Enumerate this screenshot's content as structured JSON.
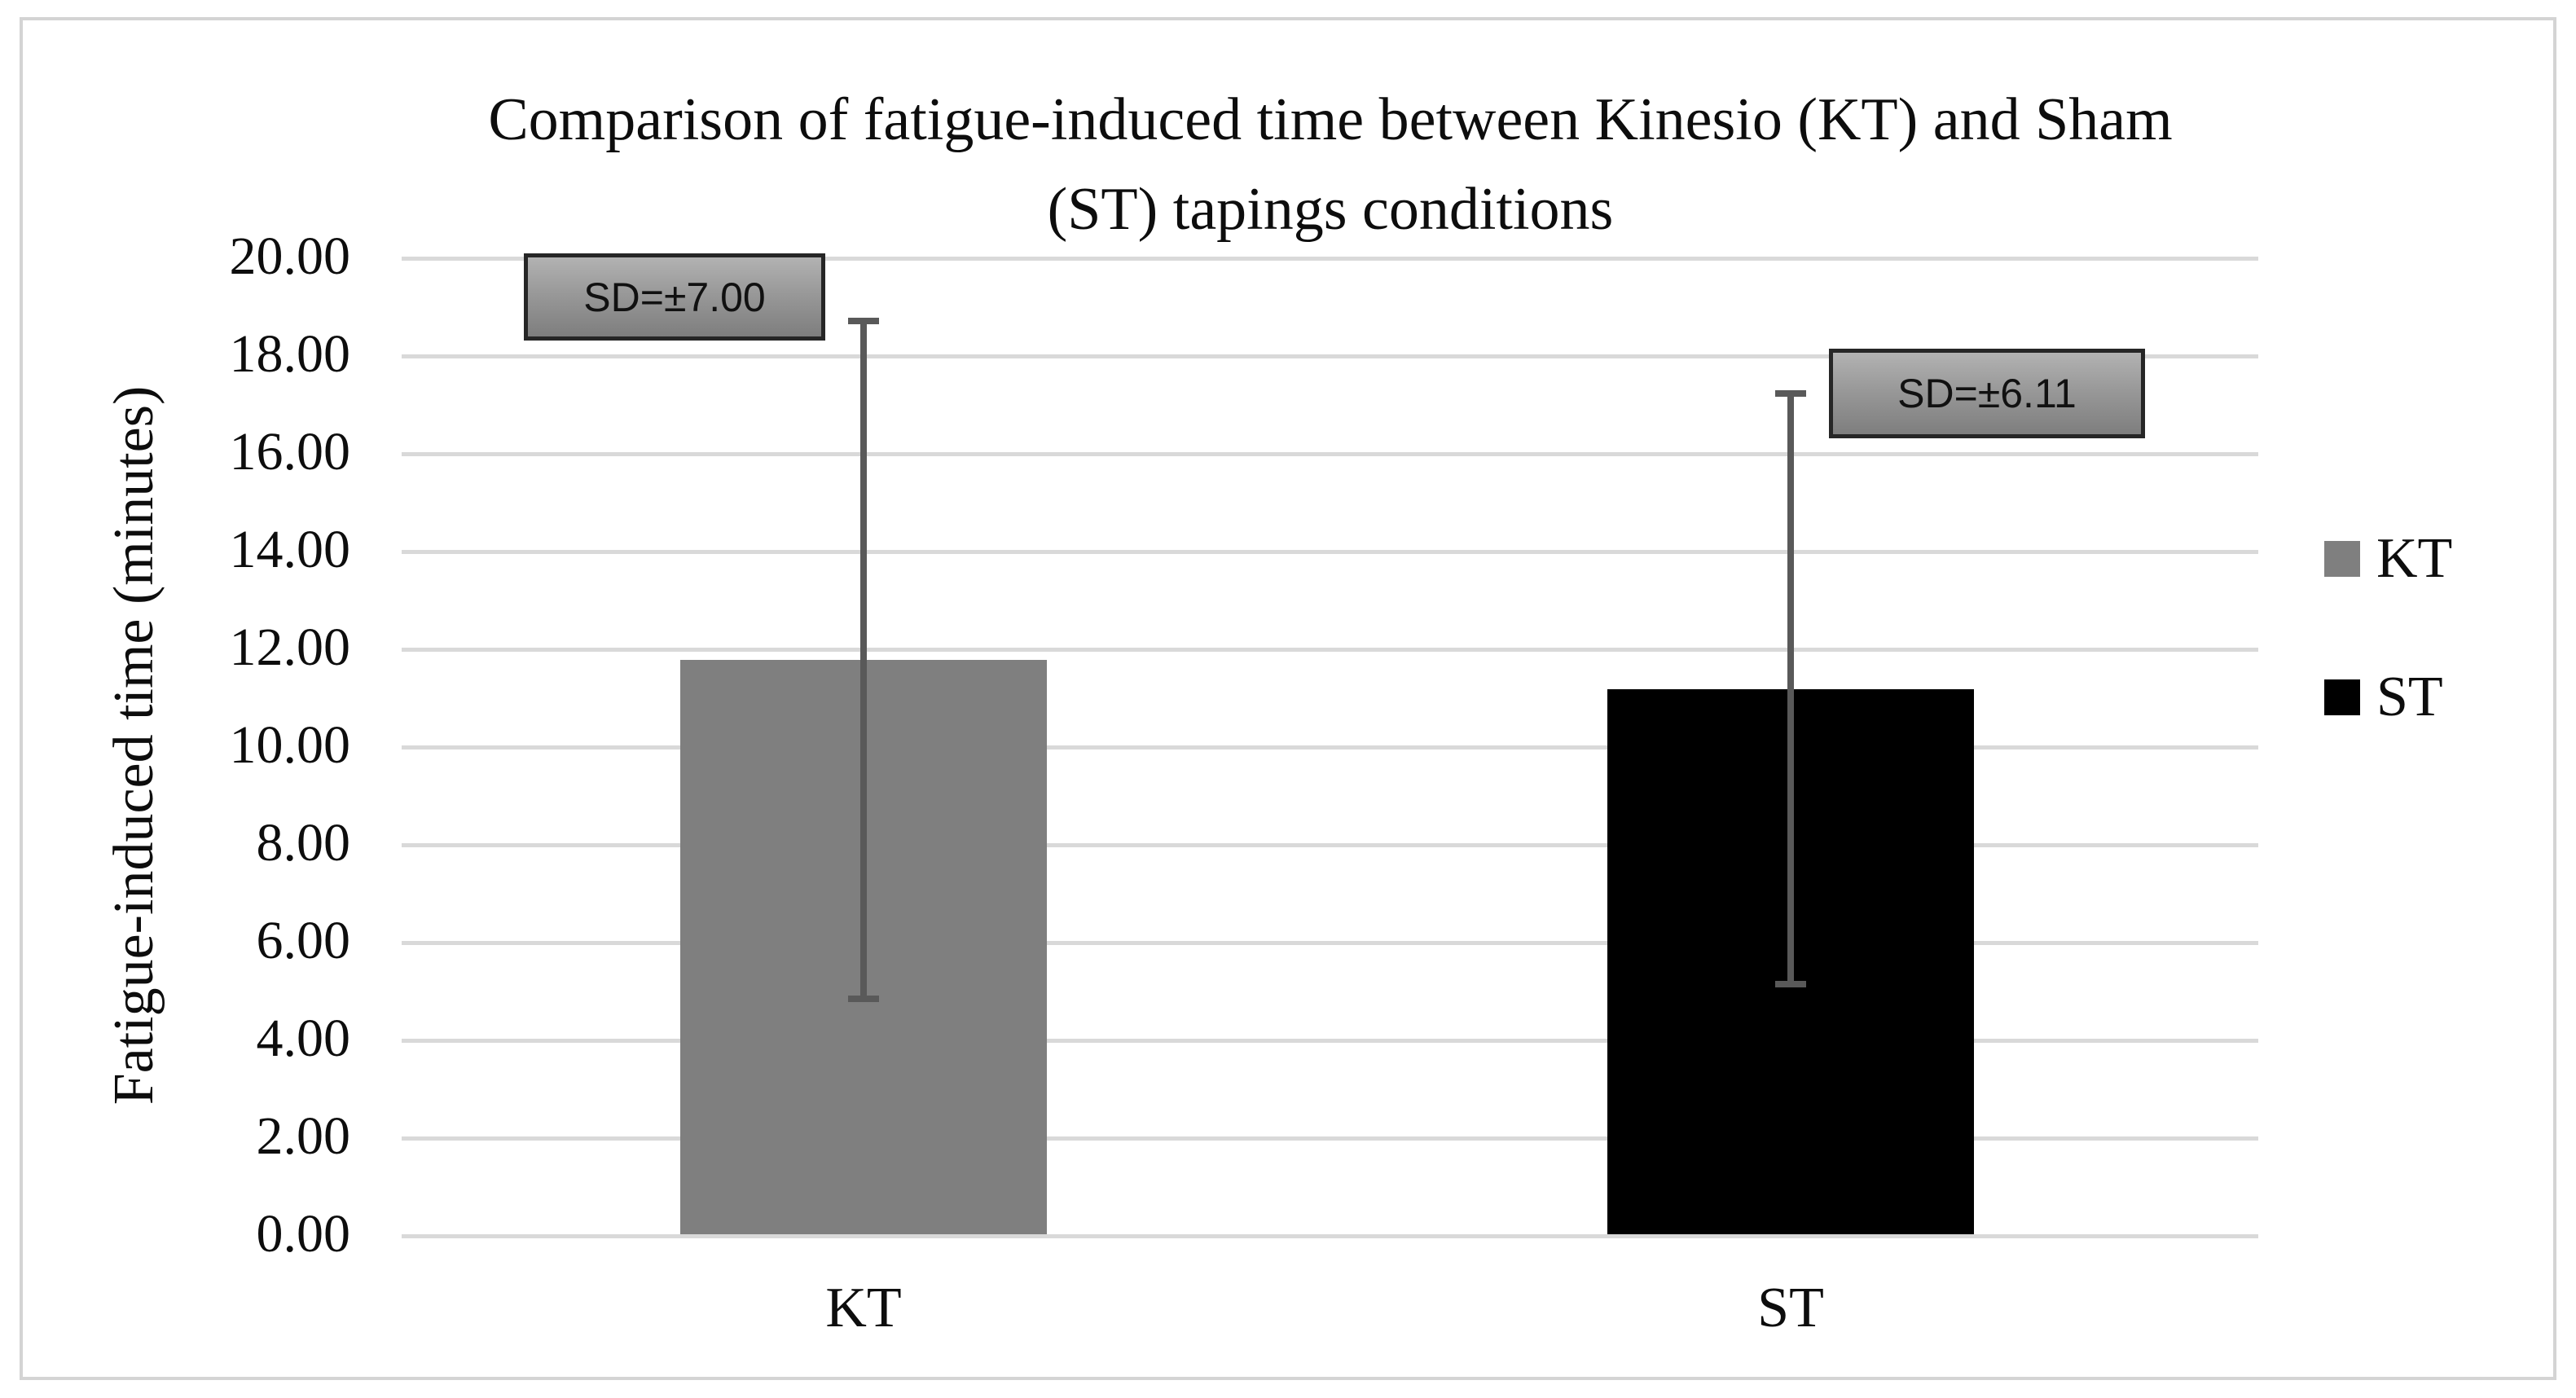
{
  "figure": {
    "title_lines": [
      "Comparison of fatigue-induced time between Kinesio (KT) and Sham",
      "(ST) tapings conditions"
    ],
    "y_axis_title": "Fatigue-induced time (minutes)"
  },
  "chart_data": {
    "type": "bar",
    "title": "Comparison of fatigue-induced time between Kinesio (KT) and Sham (ST) tapings conditions",
    "xlabel": "",
    "ylabel": "Fatigue-induced time (minutes)",
    "categories": [
      "KT",
      "ST"
    ],
    "series": [
      {
        "name": "KT",
        "value": 11.75,
        "sd": 7.0,
        "sd_label": "SD=±7.00",
        "color": "#7f7f7f"
      },
      {
        "name": "ST",
        "value": 11.15,
        "sd": 6.11,
        "sd_label": "SD=±6.11",
        "color": "#000000"
      }
    ],
    "ylim": [
      0,
      20
    ],
    "ytick_step": 2,
    "yticks": [
      "20.00",
      "18.00",
      "16.00",
      "14.00",
      "12.00",
      "10.00",
      "8.00",
      "6.00",
      "4.00",
      "2.00",
      "0.00"
    ],
    "grid": true,
    "gridline_color": "#d9d9d9",
    "error_bar_color": "#595959",
    "legend": {
      "position": "right",
      "entries": [
        "KT",
        "ST"
      ]
    }
  }
}
